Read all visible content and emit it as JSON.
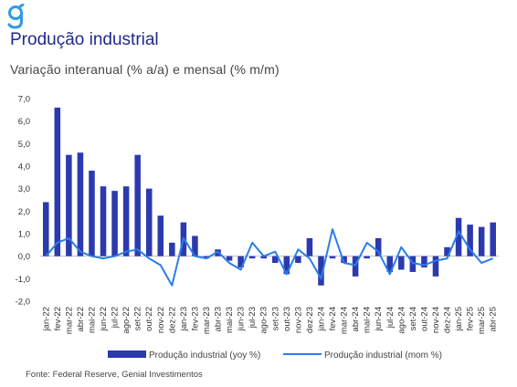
{
  "header": {
    "title": "Produção industrial",
    "subtitle": "Variação interanual (% a/a) e mensal (% m/m)"
  },
  "footer": {
    "source": "Fonte: Federal Reserve, Genial Investimentos"
  },
  "colors": {
    "bar": "#2b3aae",
    "line": "#2b7de9",
    "title": "#1f2a8c",
    "logo": "#2e9be8"
  },
  "logo": {
    "icon": "genial-g-logo"
  },
  "chart_data": {
    "type": "bar",
    "title": "",
    "xlabel": "",
    "ylabel": "",
    "ylim": [
      -2.0,
      7.0
    ],
    "yticks": [
      "7,0",
      "6,0",
      "5,0",
      "4,0",
      "3,0",
      "2,0",
      "1,0",
      "0,0",
      "-1,0",
      "-2,0"
    ],
    "ytick_values": [
      7,
      6,
      5,
      4,
      3,
      2,
      1,
      0,
      -1,
      -2
    ],
    "grid": false,
    "legend_position": "bottom",
    "categories": [
      "jan-22",
      "fev-22",
      "mar-22",
      "abr-22",
      "mai-22",
      "jun-22",
      "jul-22",
      "ago-22",
      "set-22",
      "out-22",
      "nov-22",
      "dez-22",
      "jan-23",
      "fev-23",
      "mar-23",
      "abr-23",
      "mai-23",
      "jun-23",
      "jul-23",
      "ago-23",
      "set-23",
      "out-23",
      "nov-23",
      "dez-23",
      "jan-24",
      "fev-24",
      "mar-24",
      "abr-24",
      "mai-24",
      "jun-24",
      "jul-24",
      "ago-24",
      "set-24",
      "out-24",
      "nov-24",
      "dez-24",
      "jan-25",
      "fev-25",
      "mar-25",
      "abr-25"
    ],
    "series": [
      {
        "name": "Produção industrial (yoy %)",
        "type": "bar",
        "values": [
          2.4,
          6.6,
          4.5,
          4.6,
          3.8,
          3.1,
          2.9,
          3.1,
          4.5,
          3.0,
          1.8,
          0.6,
          1.5,
          0.9,
          -0.1,
          0.3,
          -0.2,
          -0.5,
          -0.1,
          -0.1,
          -0.3,
          -0.8,
          -0.3,
          0.8,
          -1.3,
          -0.1,
          -0.3,
          -0.9,
          -0.1,
          0.8,
          -0.7,
          -0.6,
          -0.7,
          -0.5,
          -0.9,
          0.4,
          1.7,
          1.4,
          1.3,
          1.5
        ]
      },
      {
        "name": "Produção industrial (mom %)",
        "type": "line",
        "values": [
          0.0,
          0.6,
          0.8,
          0.2,
          0.0,
          -0.1,
          0.0,
          0.2,
          0.3,
          -0.1,
          -0.4,
          -1.3,
          0.8,
          0.0,
          -0.1,
          0.2,
          -0.3,
          -0.6,
          0.6,
          0.0,
          0.2,
          -0.8,
          0.3,
          -0.1,
          -1.0,
          1.2,
          -0.3,
          -0.4,
          0.6,
          0.2,
          -0.8,
          0.4,
          -0.3,
          -0.4,
          -0.2,
          -0.1,
          1.1,
          0.3,
          -0.3,
          -0.1
        ]
      }
    ]
  }
}
